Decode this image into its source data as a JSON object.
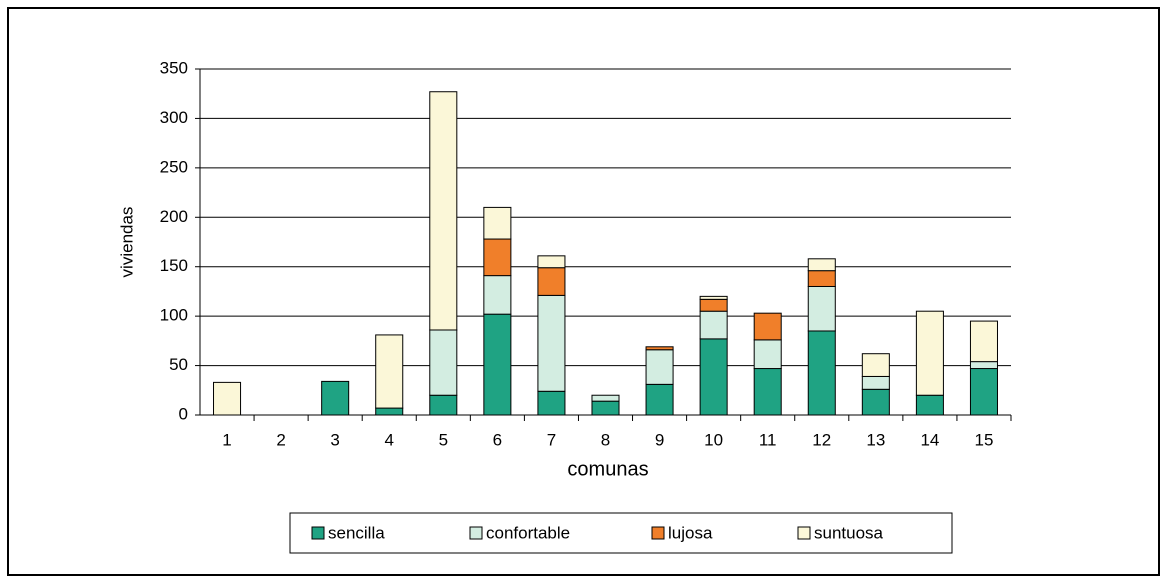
{
  "chart_data": {
    "type": "stacked-bar",
    "x_label": "comunas",
    "y_label": "viviendas",
    "categories": [
      "1",
      "2",
      "3",
      "4",
      "5",
      "6",
      "7",
      "8",
      "9",
      "10",
      "11",
      "12",
      "13",
      "14",
      "15"
    ],
    "series": [
      {
        "name": "sencilla",
        "color": "#1fa383",
        "values": [
          0,
          0,
          34,
          7,
          20,
          102,
          24,
          14,
          31,
          77,
          47,
          85,
          26,
          20,
          47
        ]
      },
      {
        "name": "confortable",
        "color": "#d3ede1",
        "values": [
          0,
          0,
          0,
          0,
          66,
          39,
          97,
          6,
          35,
          28,
          29,
          45,
          13,
          0,
          7
        ]
      },
      {
        "name": "lujosa",
        "color": "#f07f2a",
        "values": [
          0,
          0,
          0,
          0,
          0,
          37,
          28,
          0,
          3,
          12,
          27,
          16,
          0,
          0,
          0
        ]
      },
      {
        "name": "suntuosa",
        "color": "#fbf7d8",
        "values": [
          33,
          0,
          0,
          74,
          241,
          32,
          12,
          0,
          0,
          3,
          0,
          12,
          23,
          85,
          41
        ]
      }
    ],
    "ylim": [
      0,
      350
    ],
    "yticks": [
      0,
      50,
      100,
      150,
      200,
      250,
      300,
      350
    ],
    "grid": true
  }
}
